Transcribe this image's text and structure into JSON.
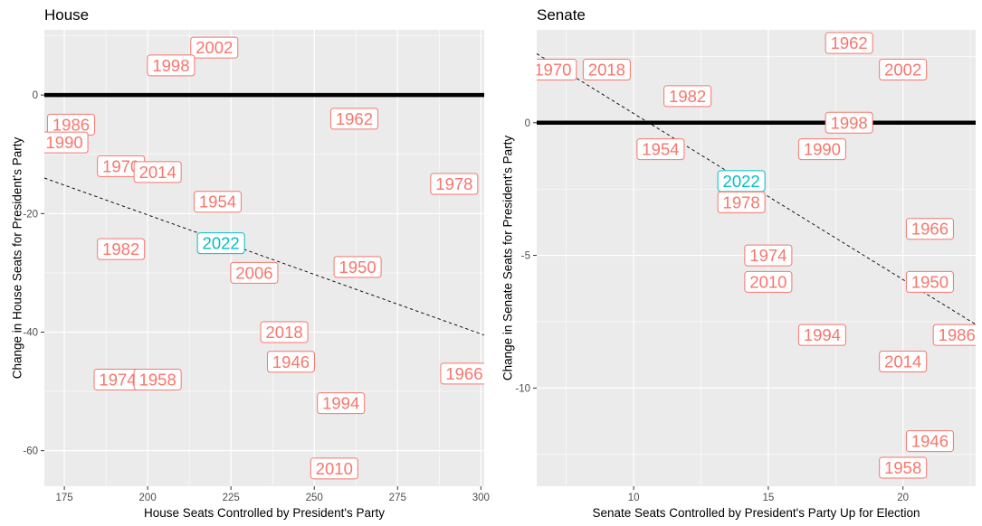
{
  "colors": {
    "panel_bg": "#ebebeb",
    "grid_major": "#ffffff",
    "zero_line": "#000000",
    "past_label": "#f8766d",
    "current_label": "#00bfc4",
    "trend_line": "#000000"
  },
  "chart_data": [
    {
      "type": "scatter",
      "title": "House",
      "xlabel": "House Seats Controlled by President's Party",
      "ylabel": "Change in House Seats for President's Party",
      "xlim": [
        169,
        301
      ],
      "ylim": [
        -66,
        11
      ],
      "xticks": [
        175,
        200,
        225,
        250,
        275,
        300
      ],
      "yticks": [
        0,
        -20,
        -40,
        -60
      ],
      "xtick_labels": [
        "175",
        "200",
        "225",
        "250",
        "275",
        "300"
      ],
      "ytick_labels": [
        "0",
        "-20",
        "-40",
        "-60"
      ],
      "grid": true,
      "reference_line_y": 0,
      "trend_line": [
        [
          169,
          -14
        ],
        [
          301,
          -40.5
        ]
      ],
      "points": [
        {
          "label": "2002",
          "x": 220,
          "y": 8,
          "highlight": false
        },
        {
          "label": "1998",
          "x": 207,
          "y": 5,
          "highlight": false
        },
        {
          "label": "1962",
          "x": 262,
          "y": -4,
          "highlight": false
        },
        {
          "label": "1986",
          "x": 177,
          "y": -5,
          "highlight": false
        },
        {
          "label": "1990",
          "x": 175,
          "y": -8,
          "highlight": false
        },
        {
          "label": "1970",
          "x": 192,
          "y": -12,
          "highlight": false
        },
        {
          "label": "2014",
          "x": 203,
          "y": -13,
          "highlight": false
        },
        {
          "label": "1978",
          "x": 292,
          "y": -15,
          "highlight": false
        },
        {
          "label": "1954",
          "x": 221,
          "y": -18,
          "highlight": false
        },
        {
          "label": "2022",
          "x": 222,
          "y": -25,
          "highlight": true
        },
        {
          "label": "1982",
          "x": 192,
          "y": -26,
          "highlight": false
        },
        {
          "label": "2006",
          "x": 232,
          "y": -30,
          "highlight": false
        },
        {
          "label": "1950",
          "x": 263,
          "y": -29,
          "highlight": false
        },
        {
          "label": "2018",
          "x": 241,
          "y": -40,
          "highlight": false
        },
        {
          "label": "1946",
          "x": 243,
          "y": -45,
          "highlight": false
        },
        {
          "label": "1974",
          "x": 191,
          "y": -48,
          "highlight": false
        },
        {
          "label": "1958",
          "x": 203,
          "y": -48,
          "highlight": false
        },
        {
          "label": "1966",
          "x": 295,
          "y": -47,
          "highlight": false
        },
        {
          "label": "1994",
          "x": 258,
          "y": -52,
          "highlight": false
        },
        {
          "label": "2010",
          "x": 256,
          "y": -63,
          "highlight": false
        }
      ]
    },
    {
      "type": "scatter",
      "title": "Senate",
      "xlabel": "Senate Seats Controlled by President's Party Up for Election",
      "ylabel": "Change in Senate Seats for President's Party",
      "xlim": [
        6.4,
        22.7
      ],
      "ylim": [
        -13.7,
        3.5
      ],
      "xticks": [
        10,
        15,
        20
      ],
      "yticks": [
        0,
        -5,
        -10
      ],
      "xtick_labels": [
        "10",
        "15",
        "20"
      ],
      "ytick_labels": [
        "0",
        "-5",
        "-10"
      ],
      "grid": true,
      "reference_line_y": 0,
      "trend_line": [
        [
          6.4,
          2.6
        ],
        [
          22.7,
          -7.6
        ]
      ],
      "points": [
        {
          "label": "1962",
          "x": 18,
          "y": 3,
          "highlight": false
        },
        {
          "label": "1970",
          "x": 7,
          "y": 2,
          "highlight": false
        },
        {
          "label": "2018",
          "x": 9,
          "y": 2,
          "highlight": false
        },
        {
          "label": "2002",
          "x": 20,
          "y": 2,
          "highlight": false
        },
        {
          "label": "1982",
          "x": 12,
          "y": 1,
          "highlight": false
        },
        {
          "label": "1998",
          "x": 18,
          "y": 0,
          "highlight": false
        },
        {
          "label": "1954",
          "x": 11,
          "y": -1,
          "highlight": false
        },
        {
          "label": "1990",
          "x": 17,
          "y": -1,
          "highlight": false
        },
        {
          "label": "2022",
          "x": 14,
          "y": -2.2,
          "highlight": true
        },
        {
          "label": "1978",
          "x": 14,
          "y": -3,
          "highlight": false
        },
        {
          "label": "1966",
          "x": 21,
          "y": -4,
          "highlight": false
        },
        {
          "label": "1974",
          "x": 15,
          "y": -5,
          "highlight": false
        },
        {
          "label": "1950",
          "x": 21,
          "y": -6,
          "highlight": false
        },
        {
          "label": "2010",
          "x": 15,
          "y": -6,
          "highlight": false
        },
        {
          "label": "1994",
          "x": 17,
          "y": -8,
          "highlight": false
        },
        {
          "label": "1986",
          "x": 22,
          "y": -8,
          "highlight": false
        },
        {
          "label": "2014",
          "x": 20,
          "y": -9,
          "highlight": false
        },
        {
          "label": "1946",
          "x": 21,
          "y": -12,
          "highlight": false
        },
        {
          "label": "1958",
          "x": 20,
          "y": -13,
          "highlight": false
        }
      ]
    }
  ]
}
